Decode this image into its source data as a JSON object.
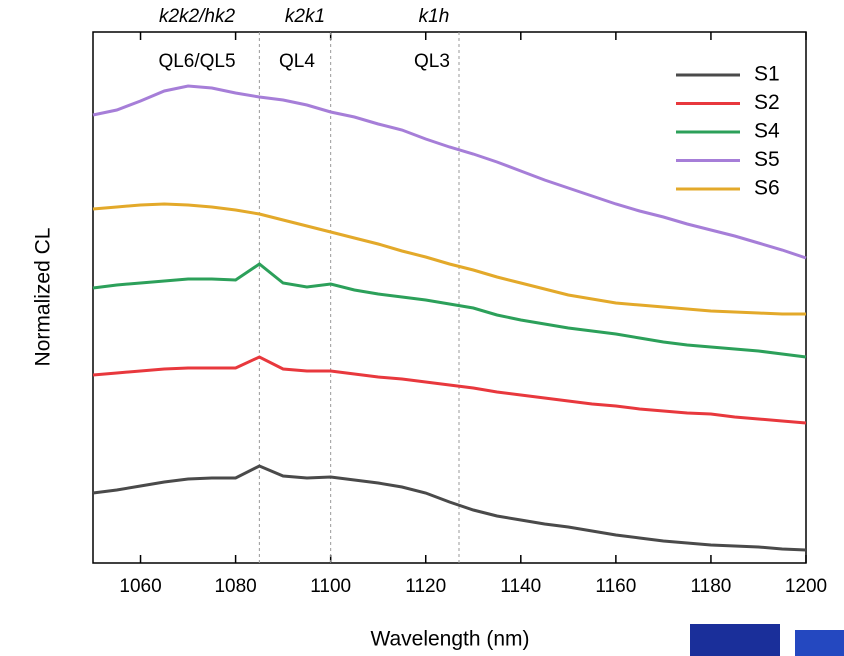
{
  "chart_data": {
    "type": "line",
    "x_label": "Wavelength (nm)",
    "y_label": "Normalized CL",
    "x": [
      1050,
      1055,
      1060,
      1065,
      1070,
      1075,
      1080,
      1085,
      1090,
      1095,
      1100,
      1105,
      1110,
      1115,
      1120,
      1125,
      1130,
      1135,
      1140,
      1145,
      1150,
      1155,
      1160,
      1165,
      1170,
      1175,
      1180,
      1185,
      1190,
      1195,
      1200
    ],
    "series": [
      {
        "name": "S1",
        "color": "#4a4a4a",
        "values": [
          70,
          73,
          77,
          81,
          84,
          85,
          85,
          97,
          87,
          85,
          86,
          83,
          80,
          76,
          70,
          61,
          53,
          47,
          43,
          39,
          36,
          32,
          28,
          25,
          22,
          20,
          18,
          17,
          16,
          14,
          13
        ]
      },
      {
        "name": "S2",
        "color": "#e8383d",
        "values": [
          188,
          190,
          192,
          194,
          195,
          195,
          195,
          206,
          194,
          192,
          192,
          189,
          186,
          184,
          181,
          178,
          175,
          171,
          168,
          165,
          162,
          159,
          157,
          154,
          152,
          150,
          149,
          146,
          144,
          142,
          140
        ]
      },
      {
        "name": "S4",
        "color": "#2ca05a",
        "values": [
          275,
          278,
          280,
          282,
          284,
          284,
          283,
          299,
          280,
          276,
          279,
          273,
          269,
          266,
          263,
          259,
          255,
          248,
          243,
          239,
          235,
          232,
          229,
          225,
          221,
          218,
          216,
          214,
          212,
          209,
          206
        ]
      },
      {
        "name": "S5",
        "color": "#a67ed8",
        "values": [
          448,
          453,
          462,
          472,
          477,
          475,
          470,
          466,
          463,
          458,
          451,
          446,
          439,
          433,
          424,
          416,
          409,
          401,
          392,
          383,
          375,
          367,
          359,
          352,
          346,
          339,
          333,
          327,
          320,
          313,
          305
        ]
      },
      {
        "name": "S6",
        "color": "#e3a92a",
        "values": [
          354,
          356,
          358,
          359,
          358,
          356,
          353,
          349,
          343,
          337,
          331,
          325,
          319,
          312,
          306,
          299,
          293,
          286,
          280,
          274,
          268,
          264,
          260,
          258,
          256,
          254,
          252,
          251,
          250,
          249,
          249
        ]
      }
    ],
    "xlim": [
      1050,
      1200
    ],
    "xticks": [
      1060,
      1080,
      1100,
      1120,
      1140,
      1160,
      1180,
      1200
    ],
    "ylim": [
      0,
      531
    ],
    "vlines": [
      1085,
      1100,
      1127
    ],
    "top_labels": [
      "k2k2/hk2",
      "k2k1",
      "k1h"
    ],
    "peak_labels": [
      "QL6/QL5",
      "QL4",
      "QL3"
    ],
    "legend": "upper right"
  }
}
